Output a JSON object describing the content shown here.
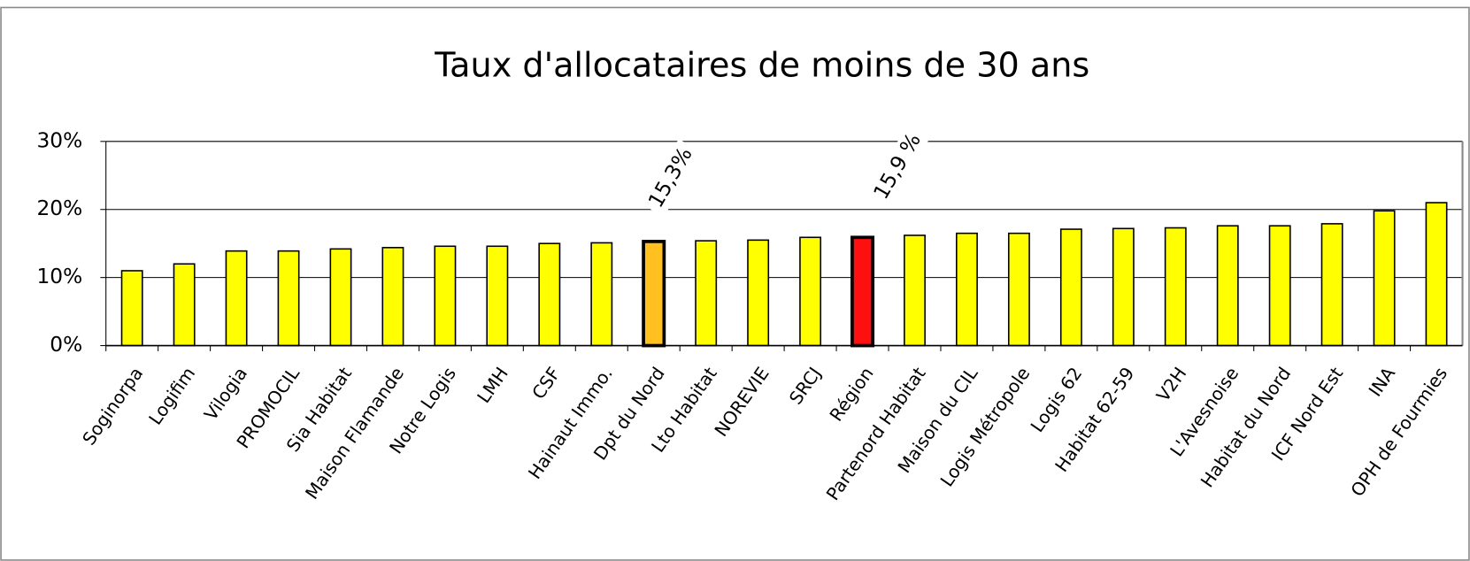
{
  "chart_data": {
    "type": "bar",
    "title": "Taux d'allocataires de moins de 30 ans",
    "categories": [
      "Soginorpa",
      "Logifim",
      "Vilogia",
      "PROMOCIL",
      "Sia Habitat",
      "Maison Flamande",
      "Notre Logis",
      "LMH",
      "CSF",
      "Hainaut Immo.",
      "Dpt du Nord",
      "Lto Habitat",
      "NOREVIE",
      "SRCJ",
      "Région",
      "Partenord Habitat",
      "Maison du CIL",
      "Logis Métropole",
      "Logis 62",
      "Habitat 62-59",
      "V2H",
      "L'Avesnoise",
      "Habitat du Nord",
      "ICF Nord Est",
      "INA",
      "OPH de Fourmies"
    ],
    "values": [
      11.0,
      12.0,
      13.9,
      13.9,
      14.2,
      14.4,
      14.6,
      14.6,
      15.0,
      15.1,
      15.3,
      15.4,
      15.5,
      15.9,
      15.9,
      16.2,
      16.5,
      16.5,
      17.1,
      17.2,
      17.3,
      17.6,
      17.6,
      17.9,
      19.8,
      21.0
    ],
    "colors": [
      "#ffff00",
      "#ffff00",
      "#ffff00",
      "#ffff00",
      "#ffff00",
      "#ffff00",
      "#ffff00",
      "#ffff00",
      "#ffff00",
      "#ffff00",
      "#ffc020",
      "#ffff00",
      "#ffff00",
      "#ffff00",
      "#ff1010",
      "#ffff00",
      "#ffff00",
      "#ffff00",
      "#ffff00",
      "#ffff00",
      "#ffff00",
      "#ffff00",
      "#ffff00",
      "#ffff00",
      "#ffff00",
      "#ffff00"
    ],
    "annotations": [
      "15,3%",
      "15,9 %"
    ],
    "ylim": [
      0,
      30
    ],
    "yticks": [
      {
        "value": 0,
        "label": "0%"
      },
      {
        "value": 10,
        "label": "10%"
      },
      {
        "value": 20,
        "label": "20%"
      },
      {
        "value": 30,
        "label": "30%"
      }
    ],
    "grid": true
  }
}
